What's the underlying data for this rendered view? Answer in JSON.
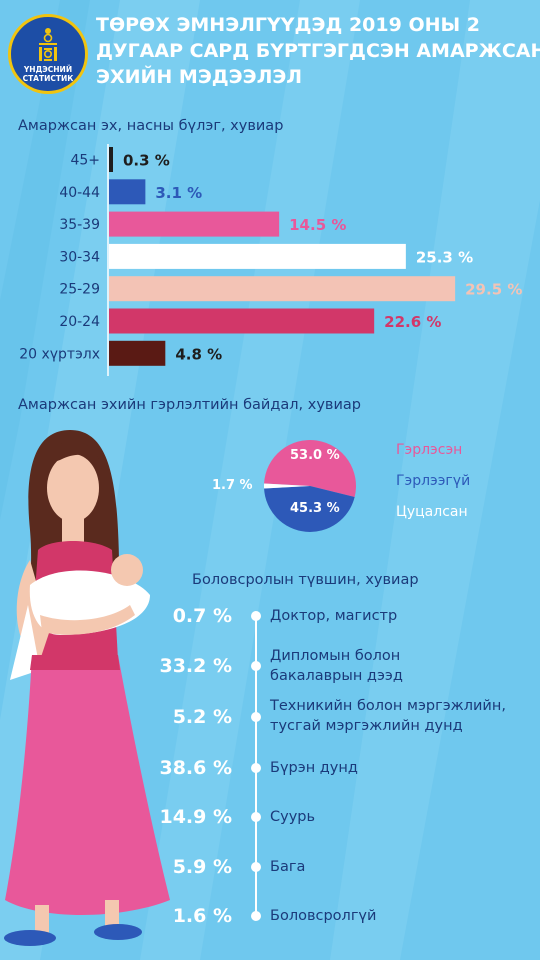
{
  "header": {
    "logo_line1": "ҮНДЭСНИЙ",
    "logo_line2": "СТАТИСТИК",
    "title_lines": [
      "ТӨРӨХ ЭМНЭЛГҮҮДЭД 2019 ОНЫ 2",
      "ДУГААР САРД БҮРТГЭГДСЭН АМАРЖСАН",
      "ЭХИЙН  МЭДЭЭЛЭЛ"
    ]
  },
  "colors": {
    "background": "#6fc8ee",
    "title": "#ffffff",
    "text_dark": "#1b3a7a",
    "pink": "#e8589a",
    "blue": "#2d59b8",
    "crimson": "#d23769",
    "peach": "#f3c3b5",
    "dark_brown": "#5a1a14"
  },
  "chart_data": [
    {
      "type": "bar",
      "orientation": "horizontal",
      "title": "Амаржсан эх, насны бүлэг, хувиар",
      "categories": [
        "45+",
        "40-44",
        "35-39",
        "30-34",
        "25-29",
        "20-24",
        "20 хүртэлх"
      ],
      "values": [
        0.3,
        3.1,
        14.5,
        25.3,
        29.5,
        22.6,
        4.8
      ],
      "value_labels": [
        "0.3 %",
        "3.1 %",
        "14.5 %",
        "25.3 %",
        "29.5 %",
        "22.6 %",
        "4.8 %"
      ],
      "bar_colors": [
        "#1e1e1e",
        "#2d59b8",
        "#e8589a",
        "#ffffff",
        "#f3c3b5",
        "#d23769",
        "#5a1a14"
      ],
      "label_colors": [
        "#1e1e1e",
        "#2d59b8",
        "#e8589a",
        "#ffffff",
        "#f3c3b5",
        "#d23769",
        "#1e1e1e"
      ],
      "xlim": [
        0,
        30
      ]
    },
    {
      "type": "pie",
      "title": "Амаржсан эхийн гэрлэлтийн байдал, хувиар",
      "categories": [
        "Гэрлэсэн",
        "Гэрлээгүй",
        "Цуцалсан"
      ],
      "values": [
        53.0,
        45.3,
        1.7
      ],
      "value_labels": [
        "53.0 %",
        "45.3 %",
        "1.7 %"
      ],
      "colors": [
        "#e8589a",
        "#2d59b8",
        "#ffffff"
      ],
      "legend_colors": [
        "#e8589a",
        "#2d59b8",
        "#ffffff"
      ]
    },
    {
      "type": "table",
      "title": "Боловсролын түвшин, хувиар",
      "rows": [
        {
          "pct": "0.7 %",
          "value": 0.7,
          "label_lines": [
            "Доктор, магистр"
          ]
        },
        {
          "pct": "33.2 %",
          "value": 33.2,
          "label_lines": [
            "Дипломын болон",
            "бакалаврын дээд"
          ]
        },
        {
          "pct": "5.2 %",
          "value": 5.2,
          "label_lines": [
            "Техникийн болон мэргэжлийн,",
            "тусгай мэргэжлийн дунд"
          ]
        },
        {
          "pct": "38.6 %",
          "value": 38.6,
          "label_lines": [
            "Бүрэн дунд"
          ]
        },
        {
          "pct": "14.9 %",
          "value": 14.9,
          "label_lines": [
            "Суурь"
          ]
        },
        {
          "pct": "5.9 %",
          "value": 5.9,
          "label_lines": [
            "Бага"
          ]
        },
        {
          "pct": "1.6 %",
          "value": 1.6,
          "label_lines": [
            "Боловсролгүй"
          ]
        }
      ]
    }
  ]
}
